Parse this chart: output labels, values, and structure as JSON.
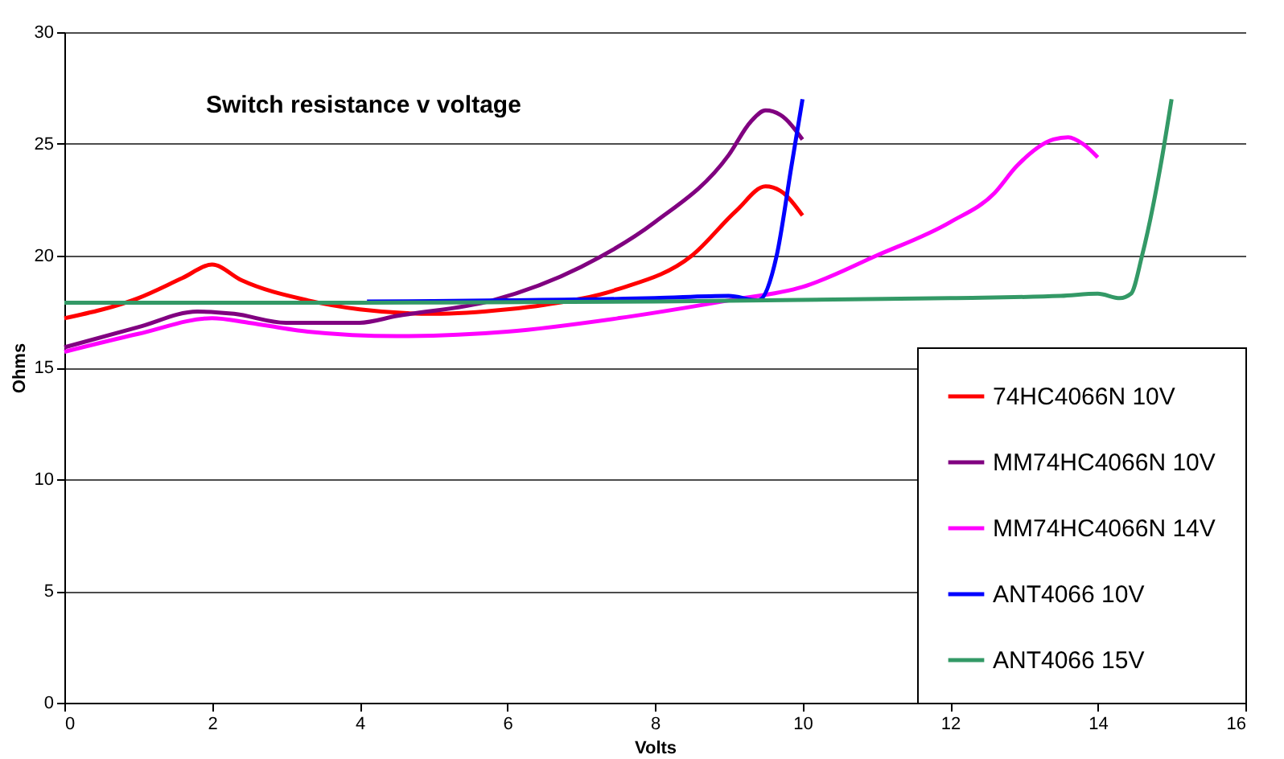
{
  "chart_data": {
    "type": "line",
    "title": "Switch resistance  v voltage",
    "xlabel": "Volts",
    "ylabel": "Ohms",
    "xlim": [
      0,
      16
    ],
    "xticks": [
      0,
      2,
      4,
      6,
      8,
      10,
      12,
      14,
      16
    ],
    "ylim": [
      0,
      30
    ],
    "yticks": [
      0,
      5,
      10,
      15,
      20,
      25,
      30
    ],
    "grid": "y",
    "legend": "bottom right",
    "series": [
      {
        "name": "74HC4066N 10V",
        "color": "#ff0000",
        "x": [
          0,
          1,
          1.6,
          2,
          2.4,
          3.3,
          4,
          5,
          6,
          6.5,
          7.5,
          8.5,
          9.1,
          9.5,
          9.7,
          10
        ],
        "values": [
          17.2,
          18.1,
          19.0,
          19.6,
          18.9,
          18.0,
          17.6,
          17.4,
          17.6,
          17.8,
          18.5,
          20.0,
          22.0,
          23.1,
          22.9,
          21.8
        ]
      },
      {
        "name": "MM74HC4066N 10V",
        "color": "#800080",
        "x": [
          0,
          1,
          1.8,
          2.3,
          3,
          4,
          4.5,
          5.8,
          7,
          8,
          9,
          9.3,
          9.5,
          9.7,
          10
        ],
        "values": [
          15.9,
          16.8,
          17.5,
          17.4,
          17.0,
          17.0,
          17.3,
          18.0,
          19.5,
          21.5,
          24.5,
          26.0,
          26.5,
          26.3,
          25.2
        ]
      },
      {
        "name": "MM74HC4066N 14V",
        "color": "#ff00ff",
        "x": [
          0,
          1,
          2,
          2.5,
          3.3,
          4.5,
          6,
          7.5,
          9,
          10,
          11,
          12,
          12.6,
          12.9,
          13.4,
          13.6,
          13.8,
          14
        ],
        "values": [
          15.7,
          16.5,
          17.2,
          17.0,
          16.6,
          16.4,
          16.6,
          17.2,
          18.0,
          18.6,
          20.0,
          21.5,
          22.8,
          24.0,
          25.2,
          25.3,
          25.0,
          24.4
        ]
      },
      {
        "name": "ANT4066 10V",
        "color": "#0000ff",
        "x": [
          4.1,
          6,
          8,
          9,
          9.4,
          9.65,
          9.85,
          10
        ],
        "values": [
          17.95,
          18.0,
          18.1,
          18.2,
          18.0,
          20.0,
          24.0,
          27.0
        ]
      },
      {
        "name": "ANT4066 15V",
        "color": "#339966",
        "x": [
          0,
          4,
          8,
          12,
          13.5,
          14,
          14.3,
          14.45,
          14.6,
          14.85,
          15
        ],
        "values": [
          17.9,
          17.9,
          17.95,
          18.1,
          18.2,
          18.3,
          18.1,
          18.3,
          20.0,
          24.0,
          27.0
        ]
      }
    ]
  }
}
